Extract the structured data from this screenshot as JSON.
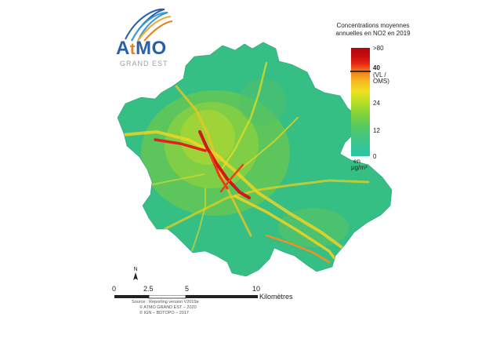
{
  "logo": {
    "brand_prefix": "A",
    "brand_t": "t",
    "brand_suffix": "MO",
    "sub": "GRAND EST"
  },
  "legend": {
    "title_line1": "Concentrations moyennes",
    "title_line2": "annuelles en NO2 en 2019",
    "ticks": {
      "max": ">80",
      "limit": "40",
      "limit_note_1": "(VL /",
      "limit_note_2": "OMS)",
      "v24": "24",
      "v12": "12",
      "v0": "0"
    },
    "unit_1": "en",
    "unit_2": "µg/m³"
  },
  "north": {
    "label": "N"
  },
  "scale": {
    "labels": [
      "0",
      "2.5",
      "5",
      "10"
    ],
    "unit": "Kilomètres"
  },
  "source": {
    "line1": "Source : Reporting version V2019a",
    "line2": "© ATMO GRAND EST – 2020",
    "line3": "© IGN – BDTOPO – 2017"
  },
  "colors": {
    "base_map": "#3dbf7a",
    "hotspot": "#d01010",
    "brand_blue": "#2a5fa8",
    "brand_orange": "#e67e22"
  }
}
